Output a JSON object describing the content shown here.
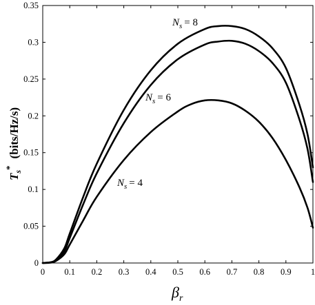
{
  "chart_data": {
    "type": "line",
    "title": "",
    "xlabel": "β",
    "xlabel_sub": "r",
    "ylabel_main": "T",
    "ylabel_sub": "s",
    "ylabel_sup": "*",
    "ylabel_units": "(bits/Hz/s)",
    "xlim": [
      0,
      1
    ],
    "ylim": [
      0,
      0.35
    ],
    "x_ticks": [
      0,
      0.1,
      0.2,
      0.3,
      0.4,
      0.5,
      0.6,
      0.7,
      0.8,
      0.9,
      1
    ],
    "x_tick_labels": [
      "0",
      "0.1",
      "0.2",
      "0.3",
      "0.4",
      "0.5",
      "0.6",
      "0.7",
      "0.8",
      "0.9",
      "1"
    ],
    "y_ticks": [
      0,
      0.05,
      0.1,
      0.15,
      0.2,
      0.25,
      0.3,
      0.35
    ],
    "y_tick_labels": [
      "0",
      "0.05",
      "0.1",
      "0.15",
      "0.2",
      "0.25",
      "0.3",
      "0.35"
    ],
    "grid": false,
    "series": [
      {
        "annotation_sym": "N",
        "annotation_sub": "s",
        "annotation_val": "= 8",
        "x": [
          0,
          0.03,
          0.05,
          0.08,
          0.1,
          0.15,
          0.2,
          0.3,
          0.4,
          0.5,
          0.6,
          0.65,
          0.7,
          0.75,
          0.8,
          0.85,
          0.9,
          0.95,
          0.98,
          1.0
        ],
        "y": [
          0,
          0.001,
          0.005,
          0.02,
          0.04,
          0.09,
          0.135,
          0.208,
          0.262,
          0.298,
          0.318,
          0.322,
          0.322,
          0.318,
          0.308,
          0.292,
          0.265,
          0.215,
          0.175,
          0.13
        ]
      },
      {
        "annotation_sym": "N",
        "annotation_sub": "s",
        "annotation_val": "= 6",
        "x": [
          0,
          0.03,
          0.05,
          0.08,
          0.1,
          0.15,
          0.2,
          0.3,
          0.4,
          0.5,
          0.6,
          0.65,
          0.7,
          0.75,
          0.8,
          0.85,
          0.9,
          0.95,
          0.98,
          1.0
        ],
        "y": [
          0,
          0.001,
          0.004,
          0.016,
          0.034,
          0.08,
          0.122,
          0.19,
          0.242,
          0.277,
          0.297,
          0.301,
          0.302,
          0.298,
          0.288,
          0.272,
          0.245,
          0.195,
          0.155,
          0.11
        ]
      },
      {
        "annotation_sym": "N",
        "annotation_sub": "s",
        "annotation_val": "= 4",
        "x": [
          0,
          0.03,
          0.05,
          0.08,
          0.1,
          0.15,
          0.2,
          0.3,
          0.4,
          0.5,
          0.55,
          0.6,
          0.65,
          0.7,
          0.75,
          0.8,
          0.85,
          0.9,
          0.95,
          0.98,
          1.0
        ],
        "y": [
          0,
          0.0005,
          0.003,
          0.012,
          0.025,
          0.058,
          0.09,
          0.14,
          0.178,
          0.206,
          0.216,
          0.221,
          0.221,
          0.217,
          0.207,
          0.192,
          0.17,
          0.14,
          0.103,
          0.075,
          0.048
        ]
      }
    ]
  }
}
